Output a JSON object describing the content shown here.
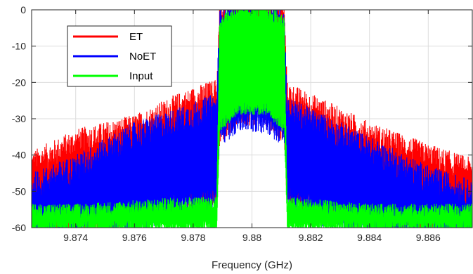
{
  "chart_data": {
    "type": "line",
    "title": "",
    "xlabel": "Frequency (GHz)",
    "ylabel": "",
    "xlim": [
      9.8725,
      9.8875
    ],
    "ylim": [
      -60,
      0
    ],
    "xticks": [
      9.874,
      9.876,
      9.878,
      9.88,
      9.882,
      9.884,
      9.886
    ],
    "xtick_labels": [
      "9.874",
      "9.876",
      "9.878",
      "9.88",
      "9.882",
      "9.884",
      "9.886"
    ],
    "yticks": [
      0,
      -10,
      -20,
      -30,
      -40,
      -50,
      -60
    ],
    "ytick_labels": [
      "0",
      "-10",
      "-20",
      "-30",
      "-40",
      "-50",
      "-60"
    ],
    "grid": true,
    "legend_position": "top-left",
    "series": [
      {
        "name": "ET",
        "color": "#ff0000",
        "noise_amplitude": 4,
        "x": [
          9.8725,
          9.874,
          9.876,
          9.8775,
          9.8788,
          9.8789,
          9.8795,
          9.88,
          9.8805,
          9.8811,
          9.8812,
          9.8825,
          9.884,
          9.886,
          9.8875
        ],
        "upper": [
          -44,
          -38,
          -34,
          -28,
          -24,
          -3,
          -1,
          -1,
          -1,
          -3,
          -25,
          -30,
          -36,
          -42,
          -46
        ],
        "lower": [
          -60,
          -60,
          -56,
          -52,
          -50,
          -33,
          -28,
          -28,
          -28,
          -33,
          -50,
          -54,
          -58,
          -60,
          -60
        ]
      },
      {
        "name": "NoET",
        "color": "#0000ff",
        "noise_amplitude": 4,
        "x": [
          9.8725,
          9.874,
          9.876,
          9.8775,
          9.8788,
          9.8789,
          9.8795,
          9.88,
          9.8805,
          9.8811,
          9.8812,
          9.8825,
          9.884,
          9.886,
          9.8875
        ],
        "upper": [
          -50,
          -45,
          -36,
          -32,
          -28,
          -4,
          -2,
          -2,
          -2,
          -4,
          -29,
          -34,
          -40,
          -48,
          -52
        ],
        "lower": [
          -60,
          -60,
          -58,
          -54,
          -52,
          -34,
          -30,
          -30,
          -30,
          -34,
          -52,
          -56,
          -60,
          -60,
          -60
        ]
      },
      {
        "name": "Input",
        "color": "#00ff00",
        "noise_amplitude": 2,
        "x": [
          9.8725,
          9.874,
          9.876,
          9.8778,
          9.8788,
          9.8789,
          9.8795,
          9.88,
          9.8805,
          9.8811,
          9.8812,
          9.8825,
          9.884,
          9.886,
          9.8875
        ],
        "upper": [
          -56,
          -56,
          -55,
          -54,
          -54,
          -4,
          -1,
          -1,
          -1,
          -4,
          -54,
          -55,
          -56,
          -56,
          -56
        ],
        "lower": [
          -60,
          -60,
          -60,
          -60,
          -60,
          -32,
          -27,
          -27,
          -27,
          -32,
          -60,
          -60,
          -60,
          -60,
          -60
        ]
      }
    ]
  }
}
